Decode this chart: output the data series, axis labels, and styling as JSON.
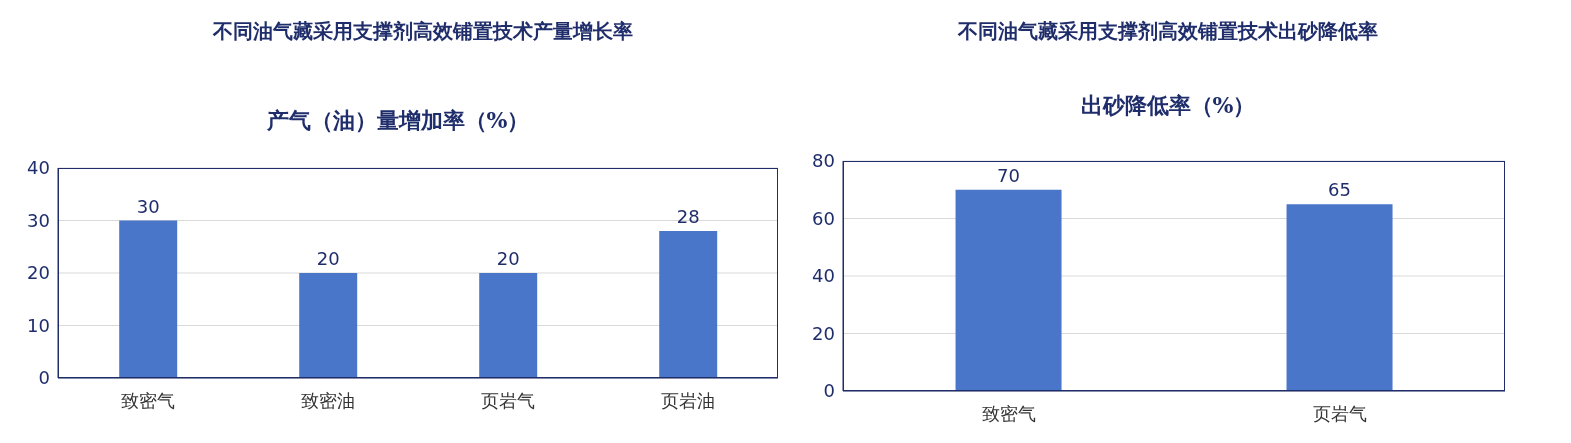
{
  "chart_data": [
    {
      "type": "bar",
      "title": "不同油气藏采用支撑剂高效铺置技术产量增长率",
      "subtitle": "产气（油）量增加率（%）",
      "categories": [
        "致密气",
        "致密油",
        "页岩气",
        "页岩油"
      ],
      "values": [
        30,
        20,
        20,
        28
      ],
      "color": "#4a76c9",
      "ylim": [
        0,
        40
      ],
      "yticks": [
        0,
        10,
        20,
        30,
        40
      ],
      "grid": "y",
      "data_labels": true
    },
    {
      "type": "bar",
      "title": "不同油气藏采用支撑剂高效铺置技术出砂降低率",
      "subtitle": "出砂降低率（%）",
      "categories": [
        "致密气",
        "页岩气"
      ],
      "values": [
        70,
        65
      ],
      "color": "#4a76c9",
      "ylim": [
        0,
        80
      ],
      "yticks": [
        0,
        20,
        40,
        60,
        80
      ],
      "grid": "y",
      "data_labels": true
    }
  ]
}
